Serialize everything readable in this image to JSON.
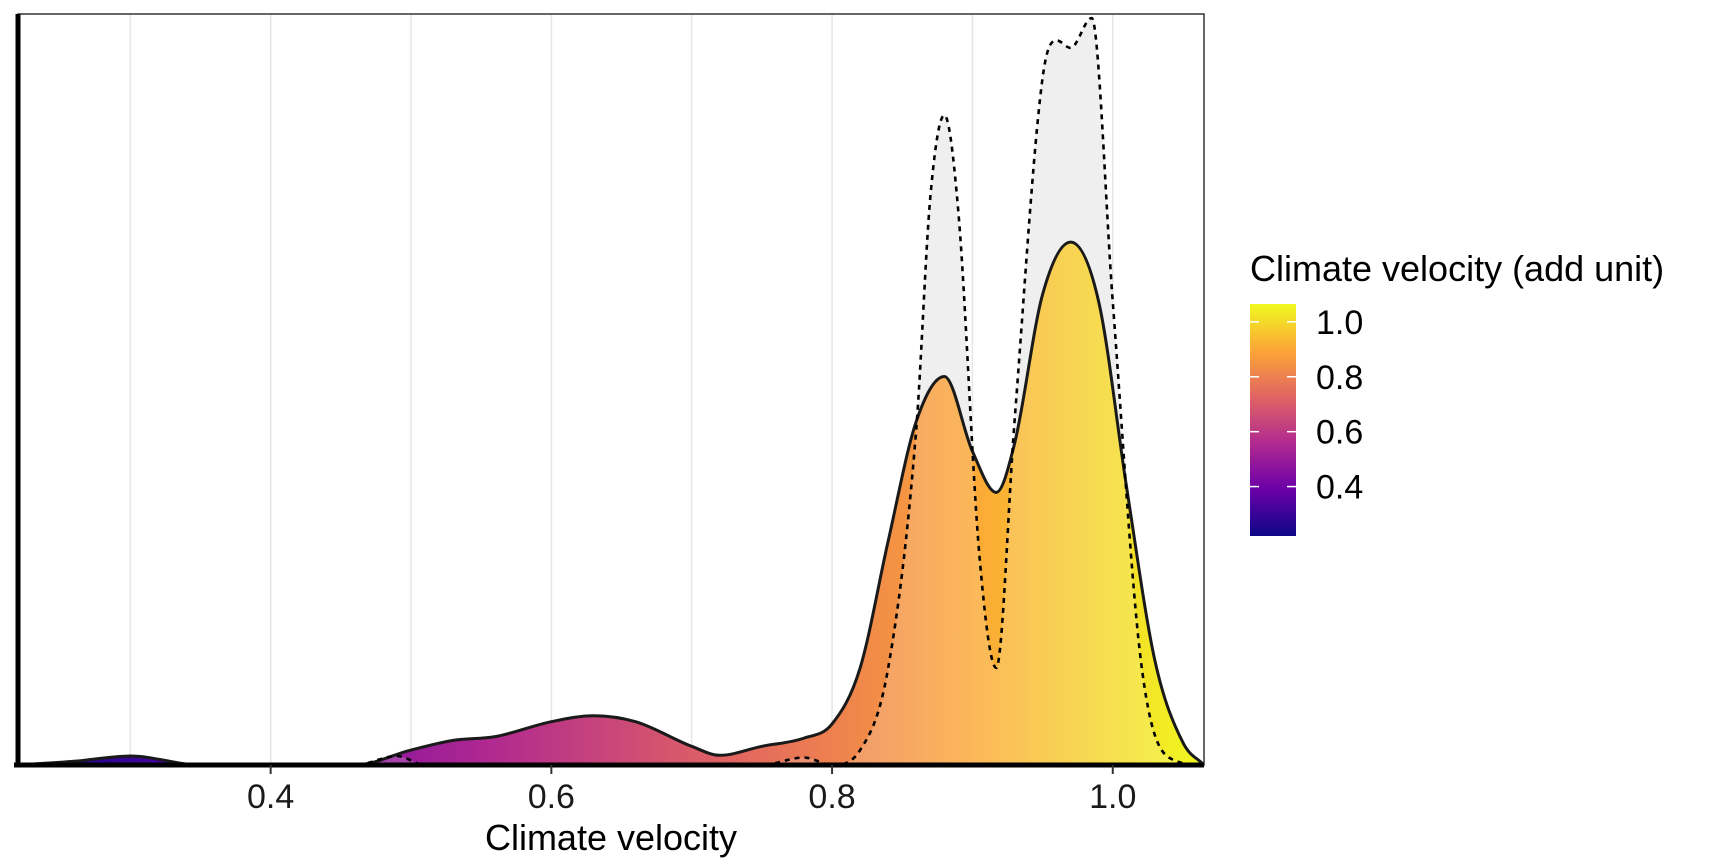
{
  "chart_data": {
    "type": "area",
    "xlabel": "Climate velocity",
    "ylabel": "",
    "xlim": [
      0.22,
      1.065
    ],
    "ylim": [
      0,
      1.0
    ],
    "grid": {
      "vertical": true,
      "horizontal": false
    },
    "x_ticks": [
      {
        "value": 0.4,
        "label": "0.4"
      },
      {
        "value": 0.6,
        "label": "0.6"
      },
      {
        "value": 0.8,
        "label": "0.8"
      },
      {
        "value": 1.0,
        "label": "1.0"
      }
    ],
    "series": [
      {
        "style": "solid-filled-gradient",
        "x": [
          0.22,
          0.26,
          0.3,
          0.35,
          0.4,
          0.46,
          0.5,
          0.53,
          0.56,
          0.6,
          0.63,
          0.66,
          0.7,
          0.72,
          0.75,
          0.78,
          0.8,
          0.82,
          0.84,
          0.86,
          0.88,
          0.9,
          0.917,
          0.93,
          0.95,
          0.97,
          0.99,
          1.01,
          1.03,
          1.05,
          1.065
        ],
        "y": [
          0.0,
          0.005,
          0.012,
          0.0,
          0.0,
          0.0,
          0.02,
          0.033,
          0.038,
          0.058,
          0.066,
          0.058,
          0.025,
          0.013,
          0.025,
          0.036,
          0.055,
          0.13,
          0.3,
          0.46,
          0.52,
          0.42,
          0.365,
          0.43,
          0.63,
          0.7,
          0.62,
          0.37,
          0.14,
          0.03,
          0.0
        ]
      },
      {
        "style": "dashed-outline-grey-fill",
        "x": [
          0.22,
          0.46,
          0.49,
          0.51,
          0.55,
          0.6,
          0.7,
          0.75,
          0.78,
          0.8,
          0.82,
          0.84,
          0.86,
          0.87,
          0.88,
          0.89,
          0.905,
          0.917,
          0.93,
          0.95,
          0.96,
          0.97,
          0.985,
          1.0,
          1.02,
          1.04,
          1.065
        ],
        "y": [
          0.0,
          0.0,
          0.012,
          0.0,
          0.0,
          0.0,
          0.0,
          0.0,
          0.01,
          0.0,
          0.02,
          0.13,
          0.45,
          0.76,
          0.87,
          0.74,
          0.28,
          0.13,
          0.46,
          0.92,
          0.97,
          0.96,
          1.0,
          0.62,
          0.14,
          0.01,
          0.0
        ]
      }
    ],
    "legend": {
      "title": "Climate velocity (add unit)",
      "placement": "right",
      "range": [
        0.22,
        1.065
      ],
      "ticks": [
        {
          "value": 0.4,
          "label": "0.4"
        },
        {
          "value": 0.6,
          "label": "0.6"
        },
        {
          "value": 0.8,
          "label": "0.8"
        },
        {
          "value": 1.0,
          "label": "1.0"
        }
      ]
    },
    "colormap": [
      "#0d0887",
      "#6a00a8",
      "#b12a90",
      "#e16462",
      "#fca636",
      "#f0f921"
    ],
    "colors": {
      "dashed_fill": "#ececec",
      "grid": "#e6e6e6",
      "panel_border": "#333333"
    }
  }
}
